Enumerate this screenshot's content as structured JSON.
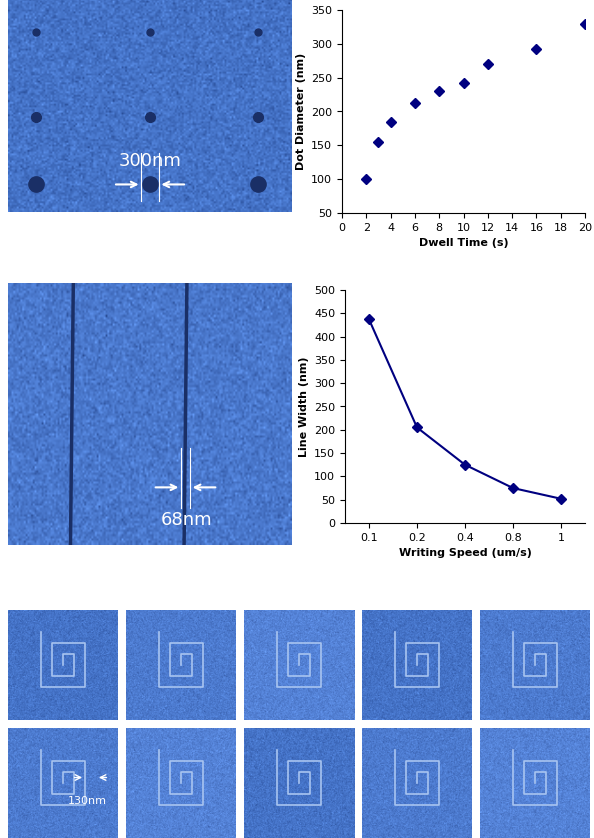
{
  "chart_data": [
    {
      "type": "scatter",
      "x": [
        2,
        3,
        4,
        6,
        8,
        10,
        12,
        16,
        20
      ],
      "values": [
        100,
        155,
        185,
        213,
        230,
        242,
        270,
        293,
        330
      ],
      "xlabel": "Dwell Time (s)",
      "ylabel": "Dot Diameter (nm)",
      "xlim": [
        0,
        20
      ],
      "xticks": [
        0,
        2,
        4,
        6,
        8,
        10,
        12,
        14,
        16,
        18,
        20
      ],
      "ylim": [
        50,
        350
      ],
      "yticks": [
        50,
        100,
        150,
        200,
        250,
        300,
        350
      ],
      "color": "#000080",
      "marker": "diamond",
      "line_style": "none"
    },
    {
      "type": "line",
      "categories": [
        "0.1",
        "0.2",
        "0.4",
        "0.8",
        "1"
      ],
      "values": [
        437,
        205,
        125,
        75,
        52
      ],
      "xlabel": "Writing Speed (um/s)",
      "ylabel": "Line Width (nm)",
      "ylim": [
        0,
        500
      ],
      "yticks": [
        0,
        50,
        100,
        150,
        200,
        250,
        300,
        350,
        400,
        450,
        500
      ],
      "color": "#000080",
      "marker": "diamond",
      "line_style": "solid"
    }
  ],
  "images": {
    "dots": {
      "label": "300nm"
    },
    "lines": {
      "label": "68nm"
    },
    "spirals": {
      "label": "130nm"
    }
  }
}
